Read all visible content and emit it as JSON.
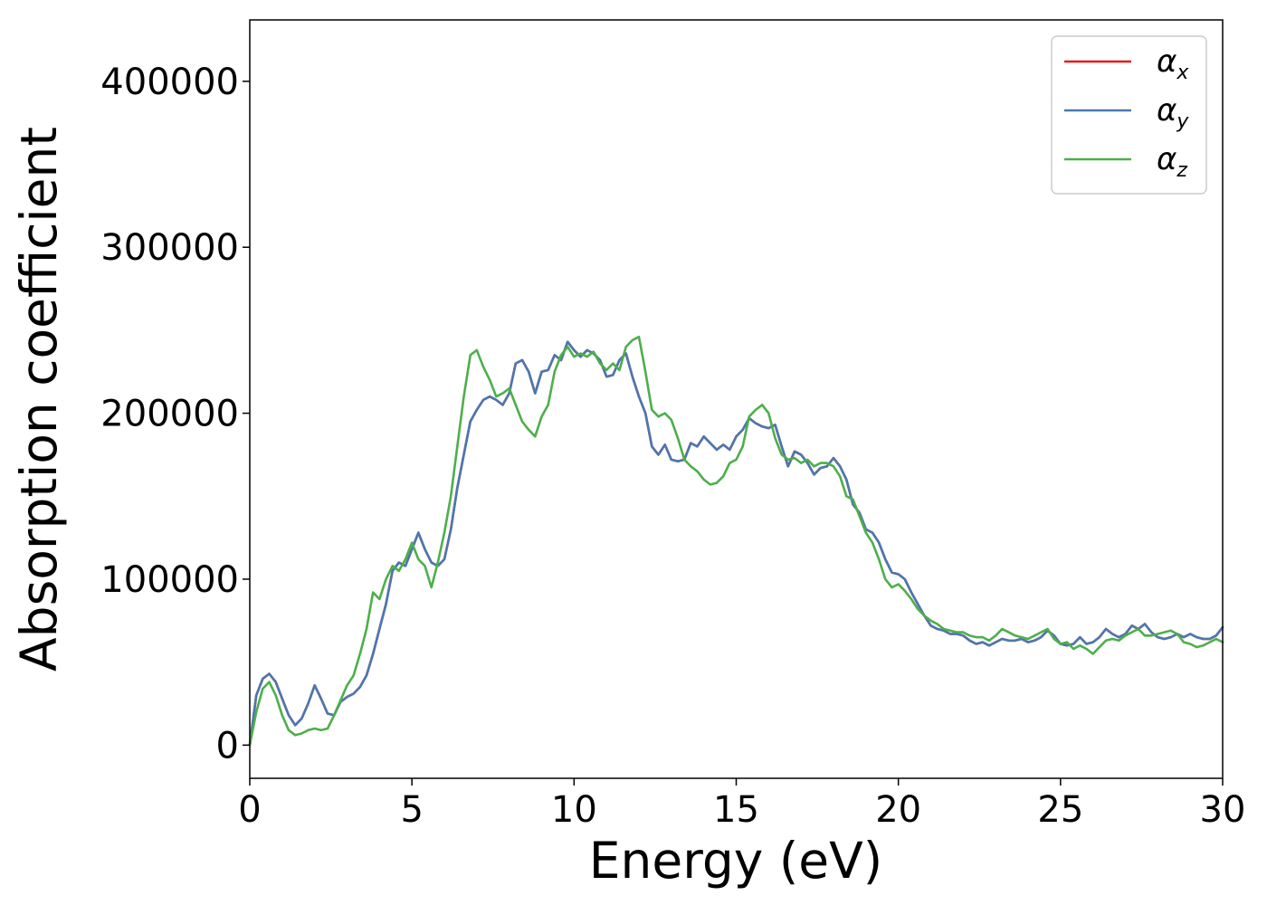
{
  "chart_data": {
    "type": "line",
    "xlabel": "Energy (eV)",
    "ylabel": "Absorption coefficient",
    "xlim": [
      0,
      30
    ],
    "ylim": [
      -20000,
      437000
    ],
    "xticks": [
      0,
      5,
      10,
      15,
      20,
      25,
      30
    ],
    "xtick_labels": [
      "0",
      "5",
      "10",
      "15",
      "20",
      "25",
      "30"
    ],
    "yticks": [
      0,
      100000,
      200000,
      300000,
      400000
    ],
    "ytick_labels": [
      "0",
      "100000",
      "200000",
      "300000",
      "400000"
    ],
    "grid": false,
    "legend_position": "top-right",
    "series": [
      {
        "name": "α",
        "subscript": "x",
        "color": "#e41a1c",
        "x": [
          0,
          0.2,
          0.4,
          0.6,
          0.8,
          1.0,
          1.2,
          1.4,
          1.6,
          1.8,
          2.0,
          2.2,
          2.4,
          2.6,
          2.8,
          3.0,
          3.2,
          3.4,
          3.6,
          3.8,
          4.0,
          4.2,
          4.4,
          4.6,
          4.8,
          5.0,
          5.2,
          5.4,
          5.6,
          5.8,
          6.0,
          6.2,
          6.4,
          6.6,
          6.8,
          7.0,
          7.2,
          7.4,
          7.6,
          7.8,
          8.0,
          8.2,
          8.4,
          8.6,
          8.8,
          9.0,
          9.2,
          9.4,
          9.6,
          9.8,
          10.0,
          10.2,
          10.4,
          10.6,
          10.8,
          11.0,
          11.2,
          11.4,
          11.6,
          11.8,
          12.0,
          12.2,
          12.4,
          12.6,
          12.8,
          13.0,
          13.2,
          13.4,
          13.6,
          13.8,
          14.0,
          14.2,
          14.4,
          14.6,
          14.8,
          15.0,
          15.2,
          15.4,
          15.6,
          15.8,
          16.0,
          16.2,
          16.4,
          16.6,
          16.8,
          17.0,
          17.2,
          17.4,
          17.6,
          17.8,
          18.0,
          18.2,
          18.4,
          18.6,
          18.8,
          19.0,
          19.2,
          19.4,
          19.6,
          19.8,
          20.0,
          20.2,
          20.4,
          20.6,
          20.8,
          21.0,
          21.2,
          21.4,
          21.6,
          21.8,
          22.0,
          22.2,
          22.4,
          22.6,
          22.8,
          23.0,
          23.2,
          23.4,
          23.6,
          23.8,
          24.0,
          24.2,
          24.4,
          24.6,
          24.8,
          25.0,
          25.2,
          25.4,
          25.6,
          25.8,
          26.0,
          26.2,
          26.4,
          26.6,
          26.8,
          27.0,
          27.2,
          27.4,
          27.6,
          27.8,
          28.0,
          28.2,
          28.4,
          28.6,
          28.8,
          29.0,
          29.2,
          29.4,
          29.6,
          29.8,
          30.0
        ],
        "y": [
          0,
          30000,
          40000,
          43000,
          38000,
          28000,
          18000,
          12000,
          16000,
          25000,
          36000,
          28000,
          19000,
          18000,
          26000,
          29000,
          31000,
          35000,
          42000,
          55000,
          70000,
          85000,
          105000,
          110000,
          108000,
          118000,
          128000,
          118000,
          110000,
          108000,
          112000,
          130000,
          155000,
          175000,
          195000,
          202000,
          208000,
          210000,
          208000,
          205000,
          212000,
          230000,
          232000,
          225000,
          212000,
          225000,
          226000,
          235000,
          232000,
          243000,
          238000,
          234000,
          238000,
          236000,
          232000,
          222000,
          223000,
          232000,
          236000,
          222000,
          210000,
          200000,
          180000,
          175000,
          181000,
          172000,
          171000,
          172000,
          182000,
          180000,
          186000,
          182000,
          178000,
          181000,
          178000,
          186000,
          190000,
          197000,
          194000,
          192000,
          191000,
          193000,
          180000,
          168000,
          177000,
          175000,
          170000,
          163000,
          167000,
          168000,
          173000,
          168000,
          160000,
          145000,
          140000,
          130000,
          128000,
          122000,
          112000,
          104000,
          103000,
          100000,
          92000,
          85000,
          78000,
          72000,
          70000,
          69000,
          67000,
          67000,
          66000,
          63000,
          61000,
          62000,
          60000,
          62000,
          64000,
          63000,
          63000,
          64000,
          62000,
          63000,
          65000,
          69000,
          66000,
          61000,
          60000,
          61000,
          65000,
          61000,
          62000,
          65000,
          70000,
          67000,
          65000,
          67000,
          72000,
          70000,
          73000,
          68000,
          65000,
          64000,
          65000,
          67000,
          65000,
          67000,
          65000,
          64000,
          64000,
          66000,
          71000
        ]
      },
      {
        "name": "α",
        "subscript": "y",
        "color": "#4a78b0",
        "x": [
          0,
          0.2,
          0.4,
          0.6,
          0.8,
          1.0,
          1.2,
          1.4,
          1.6,
          1.8,
          2.0,
          2.2,
          2.4,
          2.6,
          2.8,
          3.0,
          3.2,
          3.4,
          3.6,
          3.8,
          4.0,
          4.2,
          4.4,
          4.6,
          4.8,
          5.0,
          5.2,
          5.4,
          5.6,
          5.8,
          6.0,
          6.2,
          6.4,
          6.6,
          6.8,
          7.0,
          7.2,
          7.4,
          7.6,
          7.8,
          8.0,
          8.2,
          8.4,
          8.6,
          8.8,
          9.0,
          9.2,
          9.4,
          9.6,
          9.8,
          10.0,
          10.2,
          10.4,
          10.6,
          10.8,
          11.0,
          11.2,
          11.4,
          11.6,
          11.8,
          12.0,
          12.2,
          12.4,
          12.6,
          12.8,
          13.0,
          13.2,
          13.4,
          13.6,
          13.8,
          14.0,
          14.2,
          14.4,
          14.6,
          14.8,
          15.0,
          15.2,
          15.4,
          15.6,
          15.8,
          16.0,
          16.2,
          16.4,
          16.6,
          16.8,
          17.0,
          17.2,
          17.4,
          17.6,
          17.8,
          18.0,
          18.2,
          18.4,
          18.6,
          18.8,
          19.0,
          19.2,
          19.4,
          19.6,
          19.8,
          20.0,
          20.2,
          20.4,
          20.6,
          20.8,
          21.0,
          21.2,
          21.4,
          21.6,
          21.8,
          22.0,
          22.2,
          22.4,
          22.6,
          22.8,
          23.0,
          23.2,
          23.4,
          23.6,
          23.8,
          24.0,
          24.2,
          24.4,
          24.6,
          24.8,
          25.0,
          25.2,
          25.4,
          25.6,
          25.8,
          26.0,
          26.2,
          26.4,
          26.6,
          26.8,
          27.0,
          27.2,
          27.4,
          27.6,
          27.8,
          28.0,
          28.2,
          28.4,
          28.6,
          28.8,
          29.0,
          29.2,
          29.4,
          29.6,
          29.8,
          30.0
        ],
        "y": [
          0,
          30000,
          40000,
          43000,
          38000,
          28000,
          18000,
          12000,
          16000,
          25000,
          36000,
          28000,
          19000,
          18000,
          26000,
          29000,
          31000,
          35000,
          42000,
          55000,
          70000,
          85000,
          105000,
          110000,
          108000,
          118000,
          128000,
          118000,
          110000,
          108000,
          112000,
          130000,
          155000,
          175000,
          195000,
          202000,
          208000,
          210000,
          208000,
          205000,
          212000,
          230000,
          232000,
          225000,
          212000,
          225000,
          226000,
          235000,
          232000,
          243000,
          238000,
          234000,
          238000,
          236000,
          232000,
          222000,
          223000,
          232000,
          236000,
          222000,
          210000,
          200000,
          180000,
          175000,
          181000,
          172000,
          171000,
          172000,
          182000,
          180000,
          186000,
          182000,
          178000,
          181000,
          178000,
          186000,
          190000,
          197000,
          194000,
          192000,
          191000,
          193000,
          180000,
          168000,
          177000,
          175000,
          170000,
          163000,
          167000,
          168000,
          173000,
          168000,
          160000,
          145000,
          140000,
          130000,
          128000,
          122000,
          112000,
          104000,
          103000,
          100000,
          92000,
          85000,
          78000,
          72000,
          70000,
          69000,
          67000,
          67000,
          66000,
          63000,
          61000,
          62000,
          60000,
          62000,
          64000,
          63000,
          63000,
          64000,
          62000,
          63000,
          65000,
          69000,
          66000,
          61000,
          60000,
          61000,
          65000,
          61000,
          62000,
          65000,
          70000,
          67000,
          65000,
          67000,
          72000,
          70000,
          73000,
          68000,
          65000,
          64000,
          65000,
          67000,
          65000,
          67000,
          65000,
          64000,
          64000,
          66000,
          71000
        ]
      },
      {
        "name": "α",
        "subscript": "z",
        "color": "#4daf4a",
        "x": [
          0,
          0.2,
          0.4,
          0.6,
          0.8,
          1.0,
          1.2,
          1.4,
          1.6,
          1.8,
          2.0,
          2.2,
          2.4,
          2.6,
          2.8,
          3.0,
          3.2,
          3.4,
          3.6,
          3.8,
          4.0,
          4.2,
          4.4,
          4.6,
          4.8,
          5.0,
          5.2,
          5.4,
          5.6,
          5.8,
          6.0,
          6.2,
          6.4,
          6.6,
          6.8,
          7.0,
          7.2,
          7.4,
          7.6,
          7.8,
          8.0,
          8.2,
          8.4,
          8.6,
          8.8,
          9.0,
          9.2,
          9.4,
          9.6,
          9.8,
          10.0,
          10.2,
          10.4,
          10.6,
          10.8,
          11.0,
          11.2,
          11.4,
          11.6,
          11.8,
          12.0,
          12.2,
          12.4,
          12.6,
          12.8,
          13.0,
          13.2,
          13.4,
          13.6,
          13.8,
          14.0,
          14.2,
          14.4,
          14.6,
          14.8,
          15.0,
          15.2,
          15.4,
          15.6,
          15.8,
          16.0,
          16.2,
          16.4,
          16.6,
          16.8,
          17.0,
          17.2,
          17.4,
          17.6,
          17.8,
          18.0,
          18.2,
          18.4,
          18.6,
          18.8,
          19.0,
          19.2,
          19.4,
          19.6,
          19.8,
          20.0,
          20.2,
          20.4,
          20.6,
          20.8,
          21.0,
          21.2,
          21.4,
          21.6,
          21.8,
          22.0,
          22.2,
          22.4,
          22.6,
          22.8,
          23.0,
          23.2,
          23.4,
          23.6,
          23.8,
          24.0,
          24.2,
          24.4,
          24.6,
          24.8,
          25.0,
          25.2,
          25.4,
          25.6,
          25.8,
          26.0,
          26.2,
          26.4,
          26.6,
          26.8,
          27.0,
          27.2,
          27.4,
          27.6,
          27.8,
          28.0,
          28.2,
          28.4,
          28.6,
          28.8,
          29.0,
          29.2,
          29.4,
          29.6,
          29.8,
          30.0
        ],
        "y": [
          0,
          20000,
          34000,
          38000,
          30000,
          18000,
          9000,
          6000,
          7000,
          9000,
          10000,
          9000,
          10000,
          18000,
          27000,
          36000,
          42000,
          55000,
          70000,
          92000,
          88000,
          100000,
          108000,
          105000,
          112000,
          122000,
          112000,
          108000,
          95000,
          110000,
          128000,
          150000,
          180000,
          210000,
          235000,
          238000,
          228000,
          220000,
          210000,
          212000,
          215000,
          205000,
          195000,
          190000,
          186000,
          198000,
          205000,
          225000,
          235000,
          240000,
          234000,
          236000,
          234000,
          237000,
          230000,
          226000,
          230000,
          226000,
          240000,
          244000,
          246000,
          225000,
          202000,
          198000,
          200000,
          196000,
          185000,
          172000,
          168000,
          165000,
          160000,
          157000,
          158000,
          162000,
          170000,
          172000,
          180000,
          198000,
          202000,
          205000,
          200000,
          185000,
          175000,
          172000,
          173000,
          170000,
          172000,
          168000,
          170000,
          170000,
          168000,
          162000,
          150000,
          148000,
          138000,
          128000,
          122000,
          112000,
          100000,
          95000,
          97000,
          93000,
          88000,
          82000,
          78000,
          75000,
          73000,
          70000,
          69000,
          68000,
          68000,
          66000,
          65000,
          65000,
          63000,
          66000,
          70000,
          68000,
          66000,
          65000,
          64000,
          66000,
          68000,
          70000,
          64000,
          61000,
          62000,
          58000,
          60000,
          58000,
          55000,
          59000,
          63000,
          64000,
          63000,
          66000,
          68000,
          70000,
          66000,
          66000,
          67000,
          68000,
          69000,
          67000,
          62000,
          61000,
          59000,
          60000,
          62000,
          64000,
          62000
        ]
      }
    ]
  }
}
